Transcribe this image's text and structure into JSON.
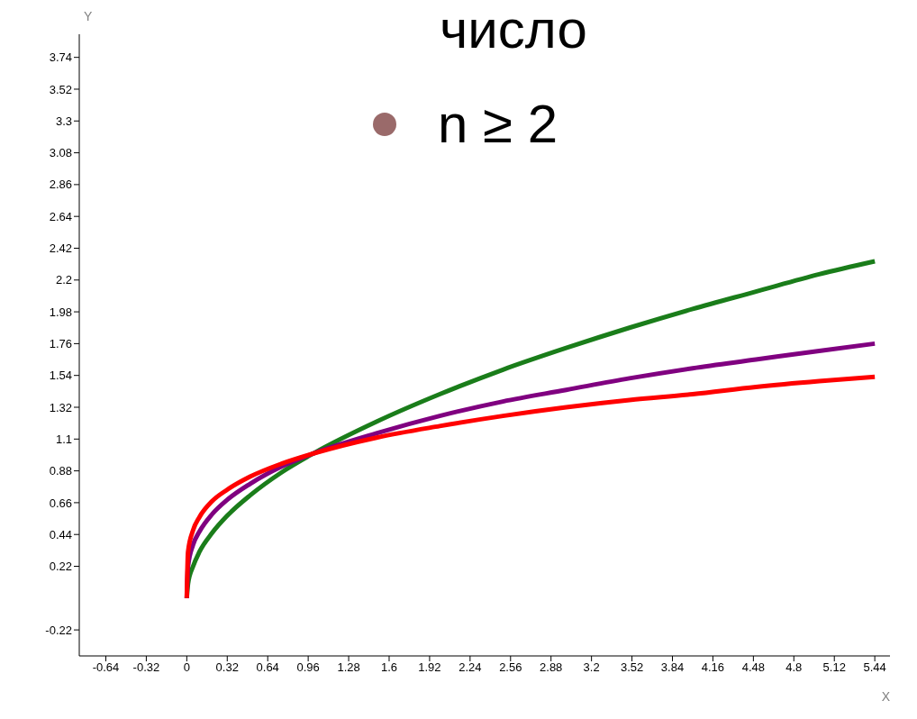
{
  "chart_data": {
    "type": "line",
    "xlabel": "X",
    "ylabel": "Y",
    "annotations": [
      "число",
      "n ≥ 2"
    ],
    "x": [
      0,
      0.01,
      0.05,
      0.1,
      0.2,
      0.32,
      0.5,
      0.75,
      1,
      1.5,
      2,
      2.5,
      3,
      3.5,
      4,
      4.5,
      5,
      5.44
    ],
    "series": [
      {
        "color": "#1a7d1a",
        "values": [
          0,
          0.1,
          0.22,
          0.32,
          0.45,
          0.57,
          0.71,
          0.87,
          1,
          1.22,
          1.41,
          1.58,
          1.73,
          1.87,
          2,
          2.12,
          2.24,
          2.33
        ]
      },
      {
        "color": "#800080",
        "values": [
          0,
          0.22,
          0.37,
          0.46,
          0.58,
          0.68,
          0.79,
          0.91,
          1,
          1.14,
          1.26,
          1.36,
          1.44,
          1.52,
          1.59,
          1.65,
          1.71,
          1.76
        ]
      },
      {
        "color": "#ff0000",
        "values": [
          0,
          0.32,
          0.47,
          0.56,
          0.67,
          0.75,
          0.84,
          0.93,
          1,
          1.11,
          1.19,
          1.26,
          1.32,
          1.37,
          1.41,
          1.46,
          1.5,
          1.53
        ]
      }
    ],
    "xlim": [
      -0.85,
      5.56
    ],
    "ylim": [
      -0.4,
      3.9
    ],
    "xticks": [
      -0.64,
      -0.32,
      0,
      0.32,
      0.64,
      0.96,
      1.28,
      1.6,
      1.92,
      2.24,
      2.56,
      2.88,
      3.2,
      3.52,
      3.84,
      4.16,
      4.48,
      4.8,
      5.12,
      5.44
    ],
    "yticks": [
      -0.22,
      0.22,
      0.44,
      0.66,
      0.88,
      1.1,
      1.32,
      1.54,
      1.76,
      1.98,
      2.2,
      2.42,
      2.64,
      2.86,
      3.08,
      3.3,
      3.52,
      3.74
    ],
    "grid": false,
    "marker": "none",
    "line_style": "solid"
  }
}
